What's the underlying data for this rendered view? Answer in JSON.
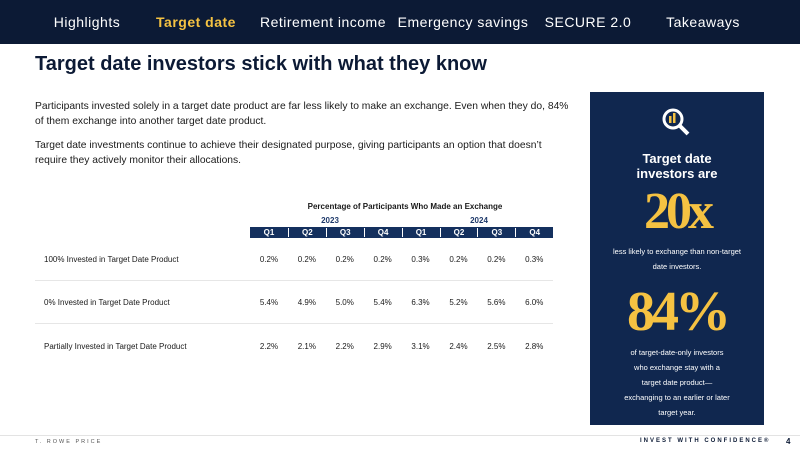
{
  "nav": {
    "items": [
      "Highlights",
      "Target date",
      "Retirement income",
      "Emergency savings",
      "SECURE 2.0",
      "Takeaways"
    ]
  },
  "header": {
    "title": "Target date investors stick with what they know"
  },
  "body": {
    "paragraphs": [
      "Participants invested solely in a target date product are far less likely to make an exchange. Even when they do, 84% of them exchange into another target date product.",
      "Target date investments continue to achieve their designated purpose, giving participants an option that doesn’t require they actively monitor their allocations."
    ]
  },
  "table": {
    "title": "Percentage of Participants Who Made an Exchange",
    "years": [
      "2023",
      "2024"
    ],
    "quarters": [
      "Q1",
      "Q2",
      "Q3",
      "Q4",
      "Q1",
      "Q2",
      "Q3",
      "Q4"
    ],
    "rows": [
      [
        "100% Invested in Target Date Product",
        "0.2%",
        "0.2%",
        "0.2%",
        "0.2%",
        "0.3%",
        "0.2%",
        "0.2%",
        "0.3%"
      ],
      [
        "0% Invested in Target Date Product",
        "5.4%",
        "4.9%",
        "5.0%",
        "5.4%",
        "6.3%",
        "5.2%",
        "5.6%",
        "6.0%"
      ],
      [
        "Partially Invested in Target Date Product",
        "2.2%",
        "2.1%",
        "2.2%",
        "2.9%",
        "3.1%",
        "2.4%",
        "2.5%",
        "2.8%"
      ]
    ]
  },
  "callout": {
    "heading": "Target date investors are",
    "stat1": "20x",
    "text1": "less likely to exchange than non-target date investors.",
    "stat2": "84%",
    "text2": "of target-date-only investors who exchange stay with a target date product—exchanging to an earlier or later target year."
  },
  "footer": {
    "brand": "T. ROWE PRICE",
    "tagline": "INVEST WITH CONFIDENCE®",
    "page": "4"
  }
}
